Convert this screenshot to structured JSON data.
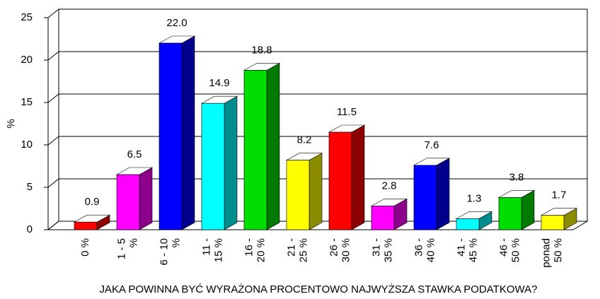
{
  "chart_data": {
    "type": "bar3d",
    "categories": [
      [
        "0 %"
      ],
      [
        "1 - 5",
        "%"
      ],
      [
        "6 - 10",
        "%"
      ],
      [
        "11 -",
        "15 %"
      ],
      [
        "16 -",
        "20 %"
      ],
      [
        "21 -",
        "25 %"
      ],
      [
        "26 -",
        "30 %"
      ],
      [
        "31 -",
        "35 %"
      ],
      [
        "36 -",
        "40 %"
      ],
      [
        "41 -",
        "45 %"
      ],
      [
        "46 -",
        "50 %"
      ],
      [
        "ponad",
        "50 %"
      ]
    ],
    "values": [
      0.9,
      6.5,
      22.0,
      14.9,
      18.8,
      8.2,
      11.5,
      2.8,
      7.6,
      1.3,
      3.8,
      1.7
    ],
    "value_labels": [
      "0.9",
      "6.5",
      "22.0",
      "14.9",
      "18.8",
      "8.2",
      "11.5",
      "2.8",
      "7.6",
      "1.3",
      "3.8",
      "1.7"
    ],
    "colors": [
      "#ff0000",
      "#ff00ff",
      "#0000ff",
      "#00ffff",
      "#00dd00",
      "#ffff00",
      "#ff0000",
      "#ff00ff",
      "#0000ff",
      "#00ffff",
      "#00dd00",
      "#ffff00"
    ],
    "ylabel": "%",
    "xlabel": "JAKA POWINNA BYĆ WYRAŻONA PROCENTOWO NAJWYŻSZA STAWKA PODATKOWA?",
    "ylim": [
      0,
      25
    ],
    "yticks": [
      0,
      5,
      10,
      15,
      20,
      25
    ],
    "grid": true
  }
}
